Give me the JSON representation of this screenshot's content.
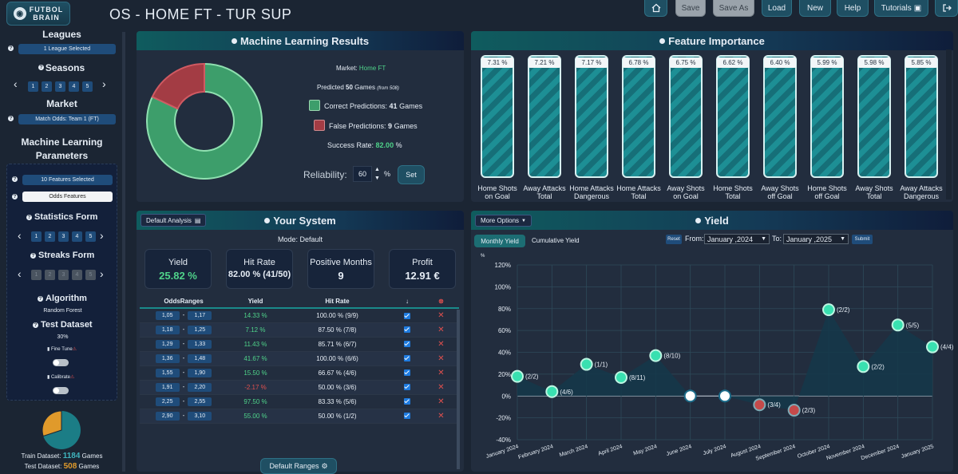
{
  "app": {
    "logo_line1": "FUTBOL",
    "logo_line2": "BRAIN",
    "title": "OS - HOME FT - TUR SUP"
  },
  "toolbar": {
    "save": "Save",
    "save_as": "Save As",
    "load": "Load",
    "new": "New",
    "help": "Help",
    "tutorials": "Tutorials"
  },
  "sidebar": {
    "leagues_title": "Leagues",
    "leagues_value": "1 League Selected",
    "seasons_title": "Seasons",
    "seasons": [
      "1",
      "2",
      "3",
      "4",
      "5"
    ],
    "market_title": "Market",
    "market_value": "Match Odds: Team 1 (FT)",
    "ml_title_1": "Machine Learning",
    "ml_title_2": "Parameters",
    "features_value": "10 Features Selected",
    "features_type": "Odds Features",
    "stats_title": "Statistics Form",
    "stats": [
      "1",
      "2",
      "3",
      "4",
      "5"
    ],
    "streaks_title": "Streaks Form",
    "streaks": [
      "1",
      "2",
      "3",
      "4",
      "5"
    ],
    "algorithm_title": "Algorithm",
    "algorithm_value": "Random Forest",
    "test_title": "Test Dataset",
    "test_value": "30%",
    "fine_tune": "Fine Tune",
    "calibrate": "Calibrate",
    "train_label": "Train Dataset:",
    "train_count": "1184",
    "test_label": "Test Dataset:",
    "test_count": "508",
    "games": "Games"
  },
  "ml": {
    "title": "Machine Learning Results",
    "market_label": "Market:",
    "market_value": "Home FT",
    "predicted_pre": "Predicted",
    "predicted_count": "50",
    "predicted_post": "Games",
    "predicted_from": "(from 508)",
    "correct_label": "Correct Predictions:",
    "correct_count": "41",
    "correct_post": "Games",
    "false_label": "False Predictions:",
    "false_count": "9",
    "false_post": "Games",
    "success_label": "Success Rate:",
    "success_value": "82.00",
    "success_post": "%",
    "reliability_label": "Reliability:",
    "reliability_value": "60",
    "reliability_unit": "%",
    "set_button": "Set",
    "correct_color": "#3d9e6b",
    "false_color": "#a33c44"
  },
  "features": {
    "title": "Feature Importance",
    "items": [
      {
        "value": "7.31 %",
        "label": "Home Shots on Goal"
      },
      {
        "value": "7.21 %",
        "label": "Away Attacks Total"
      },
      {
        "value": "7.17 %",
        "label": "Home Attacks Dangerous"
      },
      {
        "value": "6.78 %",
        "label": "Home Attacks Total"
      },
      {
        "value": "6.75 %",
        "label": "Away Shots on Goal"
      },
      {
        "value": "6.62 %",
        "label": "Home Shots Total"
      },
      {
        "value": "6.40 %",
        "label": "Away Shots off Goal"
      },
      {
        "value": "5.99 %",
        "label": "Home Shots off Goal"
      },
      {
        "value": "5.98 %",
        "label": "Away Shots Total"
      },
      {
        "value": "5.85 %",
        "label": "Away Attacks Dangerous"
      }
    ]
  },
  "system": {
    "title": "Your System",
    "analysis_button": "Default Analysis",
    "mode": "Mode: Default",
    "cards": [
      {
        "label": "Yield",
        "value": "25.82 %"
      },
      {
        "label": "Hit Rate",
        "value": "82.00 % (41/50)"
      },
      {
        "label": "Positive Months",
        "value": "9"
      },
      {
        "label": "Profit",
        "value": "12.91 €"
      }
    ],
    "headers": [
      "OddsRanges",
      "Yield",
      "Hit Rate"
    ],
    "rows": [
      {
        "lo": "1,05",
        "hi": "1,17",
        "yield": "14.33 %",
        "hit": "100.00 % (9/9)"
      },
      {
        "lo": "1,18",
        "hi": "1,25",
        "yield": "7.12 %",
        "hit": "87.50 % (7/8)"
      },
      {
        "lo": "1,29",
        "hi": "1,33",
        "yield": "11.43 %",
        "hit": "85.71 % (6/7)"
      },
      {
        "lo": "1,36",
        "hi": "1,48",
        "yield": "41.67 %",
        "hit": "100.00 % (6/6)"
      },
      {
        "lo": "1,55",
        "hi": "1,90",
        "yield": "15.50 %",
        "hit": "66.67 % (4/6)"
      },
      {
        "lo": "1,91",
        "hi": "2,20",
        "yield": "-2.17 %",
        "hit": "50.00 % (3/6)"
      },
      {
        "lo": "2,25",
        "hi": "2,55",
        "yield": "97.50 %",
        "hit": "83.33 % (5/6)"
      },
      {
        "lo": "2,90",
        "hi": "3,10",
        "yield": "55.00 %",
        "hit": "50.00 % (1/2)"
      }
    ],
    "default_ranges": "Default Ranges"
  },
  "yield": {
    "title": "Yield",
    "more_options": "More Options",
    "tab_monthly": "Monthly Yield",
    "tab_cumulative": "Cumulative Yield",
    "reset": "Reset",
    "from_label": "From:",
    "from_value": "January ,2024",
    "to_label": "To:",
    "to_value": "January ,2025",
    "submit": "Submit",
    "y_unit": "%"
  },
  "chart_data": {
    "type": "line",
    "title": "Yield",
    "ylim": [
      -40,
      120
    ],
    "yticks": [
      "120%",
      "100%",
      "80%",
      "60%",
      "40%",
      "20%",
      "0%",
      "-20%",
      "-40%"
    ],
    "categories": [
      "January 2024",
      "February 2024",
      "March 2024",
      "April 2024",
      "May 2024",
      "June 2024",
      "July 2024",
      "August 2024",
      "September 2024",
      "October 2024",
      "November 2024",
      "December 2024",
      "January 2025"
    ],
    "values": [
      18,
      4,
      29,
      17,
      37,
      0,
      0,
      -8,
      -13,
      79,
      27,
      65,
      45
    ],
    "labels": [
      "(2/2)",
      "(4/6)",
      "(1/1)",
      "(8/11)",
      "(8/10)",
      "",
      "",
      "(3/4)",
      "(2/3)",
      "(2/2)",
      "(2/2)",
      "(5/5)",
      "(4/4)"
    ]
  }
}
